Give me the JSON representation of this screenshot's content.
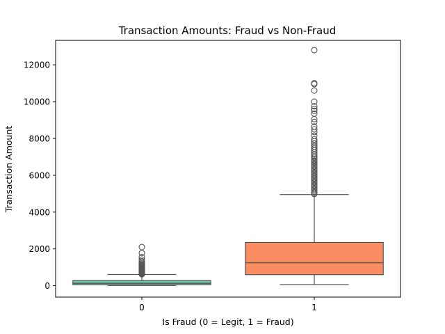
{
  "chart_data": {
    "type": "boxplot",
    "title": "Transaction Amounts: Fraud vs Non-Fraud",
    "xlabel": "Is Fraud (0 = Legit, 1 = Fraud)",
    "ylabel": "Transaction Amount",
    "categories": [
      "0",
      "1"
    ],
    "ylim": [
      -620,
      13330
    ],
    "yticks": [
      0,
      2000,
      4000,
      6000,
      8000,
      10000,
      12000
    ],
    "grid": false,
    "boxes": [
      {
        "category": "0",
        "color": "#66c2a5",
        "whisker_low": 10,
        "q1": 50,
        "median": 130,
        "q3": 280,
        "whisker_high": 610,
        "outliers": [
          620,
          650,
          680,
          710,
          740,
          780,
          820,
          860,
          900,
          940,
          980,
          1020,
          1060,
          1100,
          1150,
          1200,
          1260,
          1330,
          1420,
          1550,
          1780,
          2100
        ]
      },
      {
        "category": "1",
        "color": "#fc8d62",
        "whisker_low": 60,
        "q1": 600,
        "median": 1250,
        "q3": 2350,
        "whisker_high": 4950,
        "outliers": [
          4980,
          5050,
          5120,
          5200,
          5280,
          5360,
          5440,
          5520,
          5600,
          5680,
          5760,
          5840,
          5920,
          6000,
          6080,
          6160,
          6240,
          6320,
          6400,
          6480,
          6560,
          6640,
          6720,
          6800,
          6880,
          6960,
          7050,
          7150,
          7250,
          7350,
          7450,
          7550,
          7650,
          7750,
          7850,
          7950,
          8150,
          8350,
          8500,
          8650,
          8900,
          9050,
          9350,
          9500,
          9600,
          9750,
          10000,
          10600,
          10950,
          11000,
          12800
        ]
      }
    ]
  }
}
